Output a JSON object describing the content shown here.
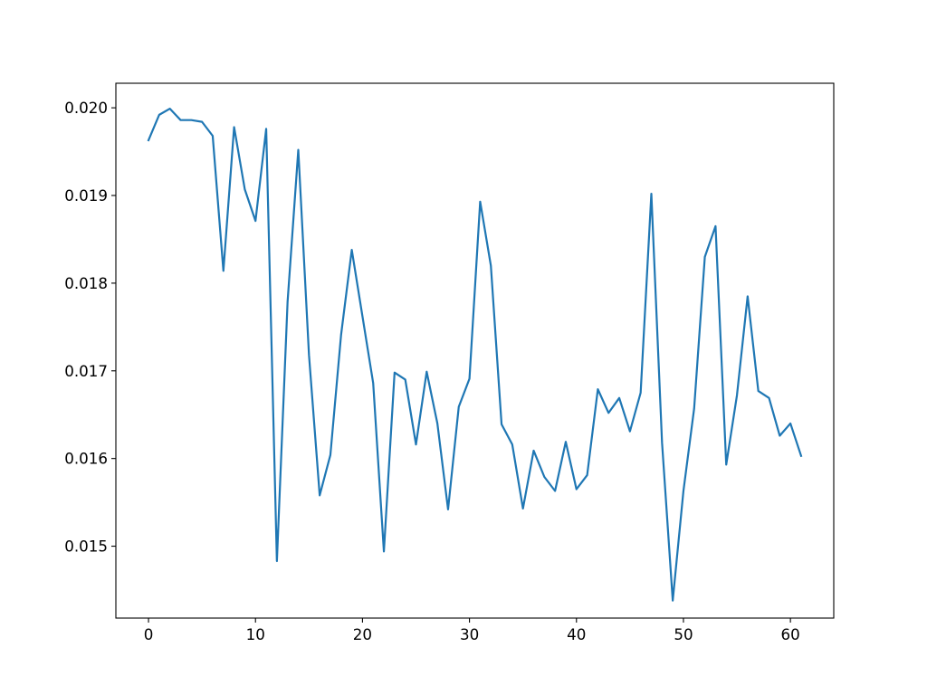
{
  "chart_data": {
    "type": "line",
    "title": "",
    "xlabel": "",
    "ylabel": "",
    "xlim": [
      -3.05,
      64.05
    ],
    "ylim": [
      0.01418,
      0.02028
    ],
    "grid": false,
    "legend": "none",
    "x_ticks": [
      0,
      10,
      20,
      30,
      40,
      50,
      60
    ],
    "x_tick_labels": [
      "0",
      "10",
      "20",
      "30",
      "40",
      "50",
      "60"
    ],
    "y_ticks": [
      0.015,
      0.016,
      0.017,
      0.018,
      0.019,
      0.02
    ],
    "y_tick_labels": [
      "0.015",
      "0.016",
      "0.017",
      "0.018",
      "0.019",
      "0.020"
    ],
    "series": [
      {
        "color": "#1f77b4",
        "x": [
          0,
          1,
          2,
          3,
          4,
          5,
          6,
          7,
          8,
          9,
          10,
          11,
          12,
          13,
          14,
          15,
          16,
          17,
          18,
          19,
          20,
          21,
          22,
          23,
          24,
          25,
          26,
          27,
          28,
          29,
          30,
          31,
          32,
          33,
          34,
          35,
          36,
          37,
          38,
          39,
          40,
          41,
          42,
          43,
          44,
          45,
          46,
          47,
          48,
          49,
          50,
          51,
          52,
          53,
          54,
          55,
          56,
          57,
          58,
          59,
          60,
          61
        ],
        "values": [
          0.01963,
          0.01992,
          0.01999,
          0.01986,
          0.01986,
          0.01984,
          0.01968,
          0.01814,
          0.01978,
          0.01907,
          0.01871,
          0.01976,
          0.01483,
          0.01779,
          0.01952,
          0.01718,
          0.01558,
          0.01604,
          0.01741,
          0.01838,
          0.01762,
          0.01686,
          0.01494,
          0.01698,
          0.0169,
          0.01616,
          0.01699,
          0.0164,
          0.01542,
          0.01659,
          0.01691,
          0.01893,
          0.0182,
          0.01639,
          0.01616,
          0.01543,
          0.01609,
          0.01579,
          0.01563,
          0.01619,
          0.01565,
          0.01581,
          0.01679,
          0.01652,
          0.01669,
          0.01631,
          0.01675,
          0.01902,
          0.01618,
          0.01438,
          0.01563,
          0.01657,
          0.0183,
          0.01865,
          0.01593,
          0.01672,
          0.01785,
          0.01677,
          0.01669,
          0.01626,
          0.0164,
          0.01603
        ]
      }
    ]
  }
}
